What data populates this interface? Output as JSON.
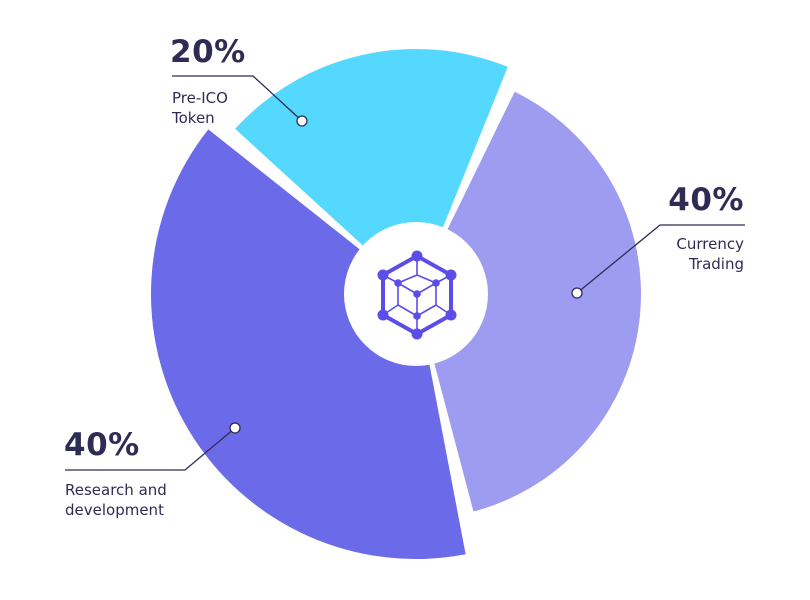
{
  "chart_data": {
    "type": "pie",
    "style": "donut with exploded slices",
    "categories": [
      "Currency Trading",
      "Research and development",
      "Pre-ICO Token"
    ],
    "values": [
      40,
      40,
      20
    ],
    "labels": [
      {
        "percent": "40%",
        "text": "Currency\nTrading"
      },
      {
        "percent": "40%",
        "text": "Research and\ndevelopment"
      },
      {
        "percent": "20%",
        "text": "Pre-ICO\nToken"
      }
    ],
    "colors": [
      "#9d9cf0",
      "#6b6ae8",
      "#55d8fe"
    ],
    "center_icon": "hexagon-network-cube-icon",
    "icon_color": "#5b4ee8",
    "text_color": "#2e2c54"
  }
}
